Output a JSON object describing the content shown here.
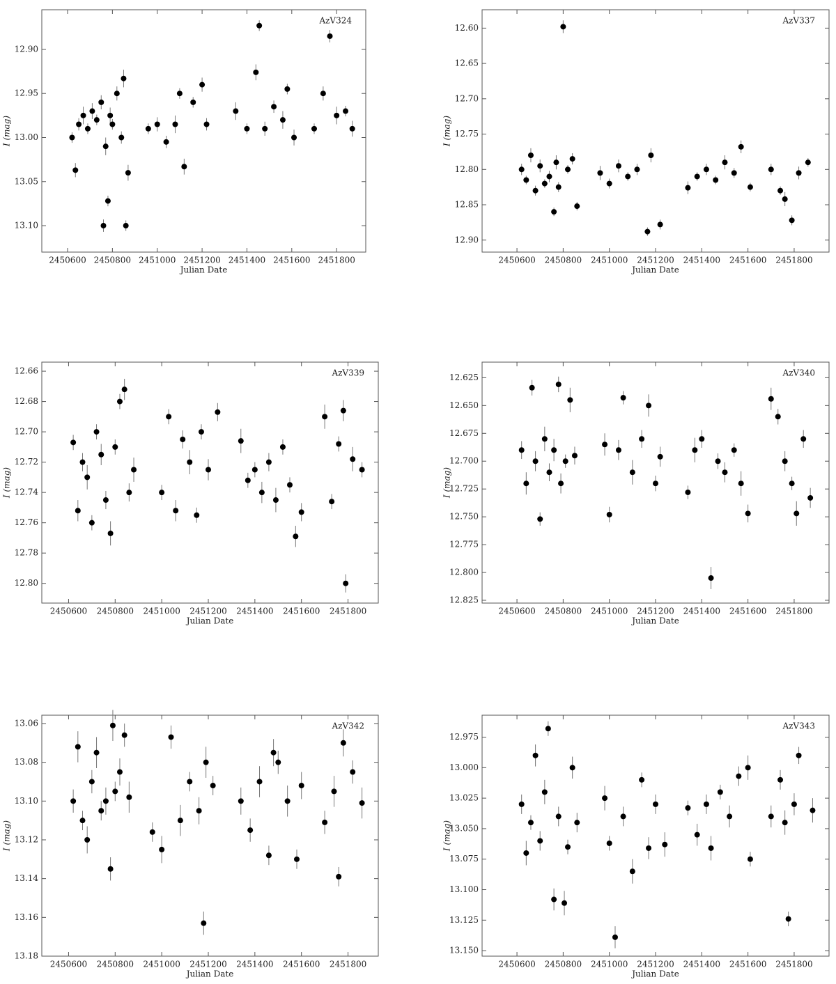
{
  "chart_data": [
    {
      "type": "scatter",
      "title": "AzV324",
      "xlabel": "Julian Date",
      "ylabel": "I (mag)",
      "yinvert": true,
      "color": "#000000",
      "xlim": [
        2450485,
        2451930
      ],
      "xticks": [
        2450600,
        2450800,
        2451000,
        2451200,
        2451400,
        2451600,
        2451800
      ],
      "ylim": [
        12.855,
        13.13
      ],
      "yticks": [
        {
          "value": 12.9,
          "label": "12.90"
        },
        12.95,
        {
          "value": 13.0,
          "label": "13.00"
        },
        13.05,
        {
          "value": 13.1,
          "label": "13.10"
        }
      ],
      "x": [
        2450620,
        2450635,
        2450650,
        2450670,
        2450690,
        2450710,
        2450730,
        2450750,
        2450760,
        2450770,
        2450780,
        2450790,
        2450800,
        2450820,
        2450840,
        2450850,
        2450860,
        2450870,
        2450960,
        2451000,
        2451040,
        2451080,
        2451100,
        2451120,
        2451160,
        2451200,
        2451220,
        2451350,
        2451400,
        2451440,
        2451455,
        2451480,
        2451520,
        2451560,
        2451580,
        2451610,
        2451700,
        2451740,
        2451770,
        2451800,
        2451840,
        2451870
      ],
      "values": [
        13.0,
        13.037,
        12.985,
        12.975,
        12.99,
        12.97,
        12.98,
        12.96,
        13.1,
        13.01,
        13.072,
        12.975,
        12.985,
        12.95,
        13.0,
        12.933,
        13.1,
        13.04,
        12.99,
        12.985,
        13.005,
        12.985,
        12.95,
        13.033,
        12.96,
        12.94,
        12.985,
        12.97,
        12.99,
        12.926,
        12.873,
        12.99,
        12.965,
        12.98,
        12.945,
        13.0,
        12.99,
        12.95,
        12.885,
        12.975,
        12.97,
        12.99
      ],
      "errors": [
        0.006,
        0.008,
        0.007,
        0.01,
        0.006,
        0.009,
        0.006,
        0.008,
        0.007,
        0.01,
        0.006,
        0.009,
        0.006,
        0.008,
        0.007,
        0.01,
        0.006,
        0.009,
        0.006,
        0.008,
        0.007,
        0.01,
        0.006,
        0.009,
        0.006,
        0.008,
        0.007,
        0.01,
        0.006,
        0.009,
        0.006,
        0.008,
        0.007,
        0.01,
        0.006,
        0.009,
        0.006,
        0.008,
        0.007,
        0.01,
        0.006,
        0.009
      ]
    },
    {
      "type": "scatter",
      "title": "AzV337",
      "xlabel": "Julian Date",
      "ylabel": "I (mag)",
      "yinvert": true,
      "color": "#000000",
      "xlim": [
        2450449,
        2451951
      ],
      "xticks": [
        2450600,
        2450800,
        2451000,
        2451200,
        2451400,
        2451600,
        2451800
      ],
      "ylim": [
        12.574,
        12.917
      ],
      "yticks": [
        {
          "value": 12.6,
          "label": "12.60"
        },
        12.65,
        {
          "value": 12.7,
          "label": "12.70"
        },
        12.75,
        {
          "value": 12.8,
          "label": "12.80"
        },
        12.85,
        {
          "value": 12.9,
          "label": "12.90"
        }
      ],
      "x": [
        2450620,
        2450640,
        2450660,
        2450680,
        2450700,
        2450720,
        2450740,
        2450760,
        2450770,
        2450780,
        2450800,
        2450820,
        2450840,
        2450860,
        2450960,
        2451000,
        2451040,
        2451080,
        2451120,
        2451165,
        2451180,
        2451220,
        2451340,
        2451380,
        2451420,
        2451460,
        2451500,
        2451540,
        2451570,
        2451610,
        2451700,
        2451740,
        2451760,
        2451790,
        2451820,
        2451860
      ],
      "values": [
        12.8,
        12.815,
        12.78,
        12.83,
        12.795,
        12.82,
        12.81,
        12.86,
        12.79,
        12.825,
        12.598,
        12.8,
        12.785,
        12.852,
        12.805,
        12.82,
        12.795,
        12.81,
        12.8,
        12.888,
        12.78,
        12.878,
        12.826,
        12.81,
        12.8,
        12.815,
        12.79,
        12.805,
        12.768,
        12.825,
        12.8,
        12.83,
        12.842,
        12.872,
        12.805,
        12.79
      ],
      "errors": [
        0.008,
        0.006,
        0.01,
        0.007,
        0.009,
        0.006,
        0.008,
        0.006,
        0.01,
        0.007,
        0.009,
        0.006,
        0.008,
        0.006,
        0.01,
        0.007,
        0.009,
        0.006,
        0.008,
        0.006,
        0.01,
        0.007,
        0.009,
        0.006,
        0.008,
        0.006,
        0.01,
        0.007,
        0.009,
        0.006,
        0.008,
        0.006,
        0.01,
        0.007,
        0.009,
        0.006
      ]
    },
    {
      "type": "scatter",
      "title": "AzV339",
      "xlabel": "Julian Date",
      "ylabel": "I (mag)",
      "yinvert": true,
      "color": "#000000",
      "xlim": [
        2450485,
        2451930
      ],
      "xticks": [
        2450600,
        2450800,
        2451000,
        2451200,
        2451400,
        2451600,
        2451800
      ],
      "ylim": [
        12.654,
        12.813
      ],
      "yticks": [
        12.66,
        12.68,
        {
          "value": 12.7,
          "label": "12.70"
        },
        12.72,
        12.74,
        12.76,
        12.78,
        {
          "value": 12.8,
          "label": "12.80"
        }
      ],
      "x": [
        2450620,
        2450640,
        2450660,
        2450680,
        2450700,
        2450720,
        2450740,
        2450760,
        2450780,
        2450800,
        2450820,
        2450840,
        2450860,
        2450880,
        2451000,
        2451030,
        2451060,
        2451090,
        2451120,
        2451150,
        2451170,
        2451200,
        2451240,
        2451340,
        2451370,
        2451400,
        2451430,
        2451460,
        2451490,
        2451520,
        2451550,
        2451575,
        2451600,
        2451700,
        2451730,
        2451760,
        2451780,
        2451790,
        2451820,
        2451860
      ],
      "values": [
        12.707,
        12.752,
        12.72,
        12.73,
        12.76,
        12.7,
        12.715,
        12.745,
        12.767,
        12.71,
        12.68,
        12.672,
        12.74,
        12.725,
        12.74,
        12.69,
        12.752,
        12.705,
        12.72,
        12.755,
        12.7,
        12.725,
        12.687,
        12.706,
        12.732,
        12.725,
        12.74,
        12.72,
        12.745,
        12.71,
        12.735,
        12.769,
        12.753,
        12.69,
        12.746,
        12.708,
        12.686,
        12.8,
        12.718,
        12.725
      ],
      "errors": [
        0.005,
        0.007,
        0.006,
        0.008,
        0.005,
        0.005,
        0.007,
        0.006,
        0.008,
        0.005,
        0.005,
        0.007,
        0.006,
        0.008,
        0.005,
        0.005,
        0.007,
        0.006,
        0.008,
        0.005,
        0.005,
        0.007,
        0.006,
        0.008,
        0.005,
        0.005,
        0.007,
        0.006,
        0.008,
        0.005,
        0.005,
        0.007,
        0.006,
        0.008,
        0.005,
        0.005,
        0.007,
        0.006,
        0.008,
        0.005
      ]
    },
    {
      "type": "scatter",
      "title": "AzV340",
      "xlabel": "Julian Date",
      "ylabel": "I (mag)",
      "yinvert": true,
      "color": "#000000",
      "xlim": [
        2450449,
        2451951
      ],
      "xticks": [
        2450600,
        2450800,
        2451000,
        2451200,
        2451400,
        2451600,
        2451800
      ],
      "ylim": [
        12.611,
        12.8275
      ],
      "yticks": [
        12.625,
        {
          "value": 12.65,
          "label": "12.650"
        },
        12.675,
        {
          "value": 12.7,
          "label": "12.700"
        },
        12.725,
        {
          "value": 12.75,
          "label": "12.750"
        },
        12.775,
        {
          "value": 12.8,
          "label": "12.800"
        },
        12.825
      ],
      "x": [
        2450620,
        2450640,
        2450665,
        2450680,
        2450700,
        2450720,
        2450740,
        2450760,
        2450780,
        2450790,
        2450810,
        2450830,
        2450850,
        2450980,
        2451000,
        2451040,
        2451060,
        2451100,
        2451140,
        2451170,
        2451200,
        2451220,
        2451340,
        2451370,
        2451400,
        2451440,
        2451470,
        2451500,
        2451540,
        2451570,
        2451600,
        2451700,
        2451730,
        2451760,
        2451790,
        2451810,
        2451840,
        2451870
      ],
      "values": [
        12.69,
        12.72,
        12.634,
        12.7,
        12.752,
        12.68,
        12.71,
        12.69,
        12.631,
        12.72,
        12.7,
        12.645,
        12.695,
        12.685,
        12.748,
        12.69,
        12.643,
        12.71,
        12.68,
        12.65,
        12.72,
        12.696,
        12.728,
        12.69,
        12.68,
        12.805,
        12.7,
        12.71,
        12.69,
        12.72,
        12.747,
        12.644,
        12.66,
        12.7,
        12.72,
        12.747,
        12.68,
        12.733
      ],
      "errors": [
        0.008,
        0.01,
        0.007,
        0.009,
        0.006,
        0.011,
        0.008,
        0.01,
        0.007,
        0.009,
        0.006,
        0.011,
        0.008,
        0.01,
        0.007,
        0.009,
        0.006,
        0.011,
        0.008,
        0.01,
        0.007,
        0.009,
        0.006,
        0.011,
        0.008,
        0.01,
        0.007,
        0.009,
        0.006,
        0.011,
        0.008,
        0.01,
        0.007,
        0.009,
        0.006,
        0.011,
        0.008,
        0.009
      ]
    },
    {
      "type": "scatter",
      "title": "AzV342",
      "xlabel": "Julian Date",
      "ylabel": "I (mag)",
      "yinvert": true,
      "color": "#000000",
      "xlim": [
        2450485,
        2451930
      ],
      "xticks": [
        2450600,
        2450800,
        2451000,
        2451200,
        2451400,
        2451600,
        2451800
      ],
      "ylim": [
        13.0557,
        13.18
      ],
      "yticks": [
        13.06,
        13.08,
        {
          "value": 13.1,
          "label": "13.10"
        },
        13.12,
        13.14,
        13.16,
        13.18
      ],
      "x": [
        2450620,
        2450640,
        2450660,
        2450680,
        2450700,
        2450720,
        2450740,
        2450760,
        2450780,
        2450790,
        2450800,
        2450820,
        2450840,
        2450860,
        2450960,
        2451000,
        2451040,
        2451080,
        2451120,
        2451160,
        2451180,
        2451190,
        2451220,
        2451340,
        2451380,
        2451420,
        2451460,
        2451480,
        2451500,
        2451540,
        2451580,
        2451600,
        2451700,
        2451740,
        2451760,
        2451780,
        2451820,
        2451860
      ],
      "values": [
        13.1,
        13.072,
        13.11,
        13.12,
        13.09,
        13.075,
        13.105,
        13.1,
        13.135,
        13.061,
        13.095,
        13.085,
        13.066,
        13.098,
        13.116,
        13.125,
        13.067,
        13.11,
        13.09,
        13.105,
        13.163,
        13.08,
        13.092,
        13.1,
        13.115,
        13.09,
        13.128,
        13.075,
        13.08,
        13.1,
        13.13,
        13.092,
        13.111,
        13.095,
        13.139,
        13.07,
        13.085,
        13.101
      ],
      "errors": [
        0.006,
        0.008,
        0.005,
        0.007,
        0.006,
        0.008,
        0.005,
        0.007,
        0.006,
        0.008,
        0.005,
        0.007,
        0.006,
        0.008,
        0.005,
        0.007,
        0.006,
        0.008,
        0.005,
        0.007,
        0.006,
        0.008,
        0.005,
        0.007,
        0.006,
        0.008,
        0.005,
        0.007,
        0.006,
        0.008,
        0.005,
        0.007,
        0.006,
        0.008,
        0.005,
        0.007,
        0.006,
        0.008
      ]
    },
    {
      "type": "scatter",
      "title": "AzV343",
      "xlabel": "Julian Date",
      "ylabel": "I (mag)",
      "yinvert": true,
      "color": "#000000",
      "xlim": [
        2450449,
        2451951
      ],
      "xticks": [
        2450600,
        2450800,
        2451000,
        2451200,
        2451400,
        2451600,
        2451800
      ],
      "ylim": [
        12.957,
        13.1545
      ],
      "yticks": [
        12.975,
        {
          "value": 13.0,
          "label": "13.000"
        },
        13.025,
        {
          "value": 13.05,
          "label": "13.050"
        },
        13.075,
        {
          "value": 13.1,
          "label": "13.100"
        },
        13.125,
        {
          "value": 13.15,
          "label": "13.150"
        }
      ],
      "x": [
        2450620,
        2450640,
        2450660,
        2450680,
        2450700,
        2450720,
        2450735,
        2450760,
        2450780,
        2450805,
        2450820,
        2450840,
        2450860,
        2450980,
        2451000,
        2451025,
        2451060,
        2451100,
        2451140,
        2451170,
        2451200,
        2451240,
        2451340,
        2451380,
        2451420,
        2451440,
        2451480,
        2451520,
        2451560,
        2451600,
        2451610,
        2451700,
        2451740,
        2451760,
        2451775,
        2451800,
        2451820,
        2451880
      ],
      "values": [
        13.03,
        13.07,
        13.045,
        12.99,
        13.06,
        13.02,
        12.968,
        13.108,
        13.04,
        13.111,
        13.065,
        13.0,
        13.045,
        13.025,
        13.062,
        13.139,
        13.04,
        13.085,
        13.01,
        13.066,
        13.03,
        13.063,
        13.033,
        13.055,
        13.03,
        13.066,
        13.02,
        13.04,
        13.007,
        13.0,
        13.075,
        13.04,
        13.01,
        13.045,
        13.124,
        13.03,
        12.99,
        13.035
      ],
      "errors": [
        0.008,
        0.01,
        0.006,
        0.009,
        0.008,
        0.01,
        0.006,
        0.009,
        0.008,
        0.01,
        0.006,
        0.009,
        0.008,
        0.01,
        0.006,
        0.009,
        0.008,
        0.01,
        0.006,
        0.009,
        0.008,
        0.01,
        0.006,
        0.009,
        0.008,
        0.01,
        0.006,
        0.009,
        0.008,
        0.01,
        0.006,
        0.009,
        0.008,
        0.01,
        0.006,
        0.009,
        0.007,
        0.01
      ]
    }
  ]
}
